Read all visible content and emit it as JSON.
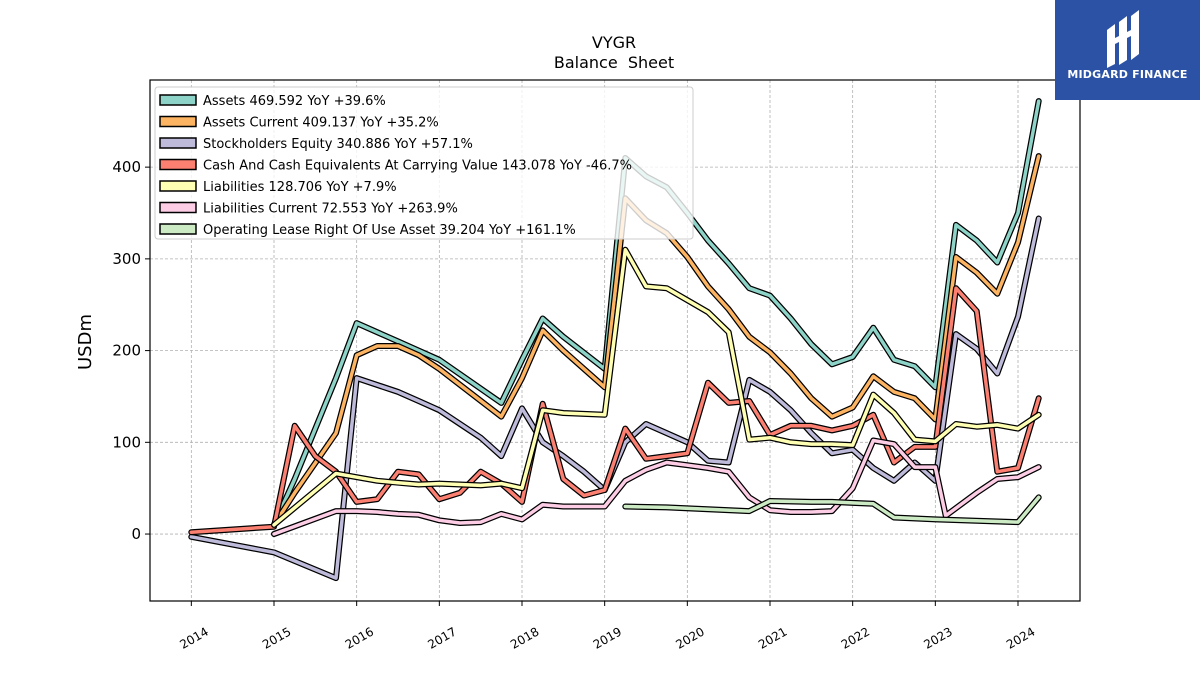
{
  "chart_data": {
    "type": "line",
    "title": "VYGR",
    "subtitle": "Balance  Sheet",
    "xlabel": "",
    "ylabel": "USDm",
    "x_ticks": [
      "2014",
      "2015",
      "2016",
      "2017",
      "2018",
      "2019",
      "2020",
      "2021",
      "2022",
      "2023",
      "2024"
    ],
    "y_ticks": [
      "0",
      "100",
      "200",
      "300",
      "400"
    ],
    "xlim": [
      2013.5,
      2024.75
    ],
    "ylim": [
      -73,
      495
    ],
    "grid": true,
    "legend_position": "top-left",
    "series": [
      {
        "name": "Assets",
        "legend": "Assets  469.592 YoY +39.6%",
        "color": "#8dd3c7",
        "points": [
          [
            2015.0,
            10
          ],
          [
            2015.25,
            60
          ],
          [
            2015.75,
            170
          ],
          [
            2016.0,
            230
          ],
          [
            2016.5,
            210
          ],
          [
            2016.75,
            200
          ],
          [
            2017.0,
            190
          ],
          [
            2017.75,
            143
          ],
          [
            2018.0,
            190
          ],
          [
            2018.25,
            235
          ],
          [
            2018.5,
            215
          ],
          [
            2019.0,
            180
          ],
          [
            2019.25,
            410
          ],
          [
            2019.5,
            390
          ],
          [
            2019.75,
            378
          ],
          [
            2020.0,
            350
          ],
          [
            2020.25,
            320
          ],
          [
            2020.5,
            295
          ],
          [
            2020.75,
            268
          ],
          [
            2021.0,
            260
          ],
          [
            2021.25,
            235
          ],
          [
            2021.5,
            207
          ],
          [
            2021.75,
            185
          ],
          [
            2022.0,
            193
          ],
          [
            2022.25,
            225
          ],
          [
            2022.5,
            190
          ],
          [
            2022.75,
            183
          ],
          [
            2023.0,
            160
          ],
          [
            2023.25,
            337
          ],
          [
            2023.5,
            320
          ],
          [
            2023.75,
            296
          ],
          [
            2024.0,
            350
          ],
          [
            2024.25,
            472
          ]
        ]
      },
      {
        "name": "Assets Current",
        "legend": "Assets Current  409.137 YoY +35.2%",
        "color": "#fdb462",
        "points": [
          [
            2015.0,
            10
          ],
          [
            2015.25,
            45
          ],
          [
            2015.75,
            110
          ],
          [
            2016.0,
            195
          ],
          [
            2016.25,
            205
          ],
          [
            2016.5,
            205
          ],
          [
            2016.75,
            195
          ],
          [
            2017.0,
            180
          ],
          [
            2017.75,
            128
          ],
          [
            2018.0,
            170
          ],
          [
            2018.25,
            222
          ],
          [
            2018.5,
            200
          ],
          [
            2019.0,
            160
          ],
          [
            2019.25,
            366
          ],
          [
            2019.5,
            342
          ],
          [
            2019.75,
            328
          ],
          [
            2020.0,
            302
          ],
          [
            2020.25,
            270
          ],
          [
            2020.5,
            245
          ],
          [
            2020.75,
            215
          ],
          [
            2021.0,
            198
          ],
          [
            2021.25,
            175
          ],
          [
            2021.5,
            148
          ],
          [
            2021.75,
            128
          ],
          [
            2022.0,
            138
          ],
          [
            2022.25,
            172
          ],
          [
            2022.5,
            155
          ],
          [
            2022.75,
            148
          ],
          [
            2023.0,
            125
          ],
          [
            2023.25,
            302
          ],
          [
            2023.5,
            285
          ],
          [
            2023.75,
            262
          ],
          [
            2024.0,
            318
          ],
          [
            2024.25,
            412
          ]
        ]
      },
      {
        "name": "Stockholders Equity",
        "legend": "Stockholders Equity  340.886 YoY +57.1%",
        "color": "#bebada",
        "points": [
          [
            2014.0,
            -3
          ],
          [
            2015.0,
            -20
          ],
          [
            2015.75,
            -48
          ],
          [
            2016.0,
            170
          ],
          [
            2016.5,
            155
          ],
          [
            2016.75,
            145
          ],
          [
            2017.0,
            135
          ],
          [
            2017.5,
            105
          ],
          [
            2017.75,
            85
          ],
          [
            2018.0,
            137
          ],
          [
            2018.25,
            100
          ],
          [
            2018.5,
            85
          ],
          [
            2018.75,
            68
          ],
          [
            2019.0,
            48
          ],
          [
            2019.25,
            100
          ],
          [
            2019.5,
            120
          ],
          [
            2019.75,
            110
          ],
          [
            2020.0,
            100
          ],
          [
            2020.25,
            80
          ],
          [
            2020.5,
            78
          ],
          [
            2020.75,
            168
          ],
          [
            2021.0,
            155
          ],
          [
            2021.25,
            135
          ],
          [
            2021.5,
            110
          ],
          [
            2021.75,
            88
          ],
          [
            2022.0,
            92
          ],
          [
            2022.25,
            72
          ],
          [
            2022.5,
            58
          ],
          [
            2022.75,
            78
          ],
          [
            2023.0,
            58
          ],
          [
            2023.25,
            218
          ],
          [
            2023.5,
            202
          ],
          [
            2023.75,
            175
          ],
          [
            2024.0,
            237
          ],
          [
            2024.25,
            344
          ]
        ]
      },
      {
        "name": "Cash And Cash Equivalents At Carrying Value",
        "legend": "Cash And Cash Equivalents At Carrying Value  143.078 YoY -46.7%",
        "color": "#fb8072",
        "points": [
          [
            2014.0,
            2
          ],
          [
            2015.0,
            8
          ],
          [
            2015.25,
            118
          ],
          [
            2015.5,
            85
          ],
          [
            2015.75,
            68
          ],
          [
            2016.0,
            35
          ],
          [
            2016.25,
            38
          ],
          [
            2016.5,
            68
          ],
          [
            2016.75,
            65
          ],
          [
            2017.0,
            38
          ],
          [
            2017.25,
            45
          ],
          [
            2017.5,
            68
          ],
          [
            2017.75,
            55
          ],
          [
            2018.0,
            35
          ],
          [
            2018.25,
            142
          ],
          [
            2018.5,
            60
          ],
          [
            2018.75,
            42
          ],
          [
            2019.0,
            48
          ],
          [
            2019.25,
            115
          ],
          [
            2019.5,
            82
          ],
          [
            2019.75,
            85
          ],
          [
            2020.0,
            88
          ],
          [
            2020.25,
            165
          ],
          [
            2020.5,
            143
          ],
          [
            2020.75,
            145
          ],
          [
            2021.0,
            108
          ],
          [
            2021.25,
            118
          ],
          [
            2021.5,
            118
          ],
          [
            2021.75,
            113
          ],
          [
            2022.0,
            118
          ],
          [
            2022.25,
            130
          ],
          [
            2022.5,
            78
          ],
          [
            2022.75,
            95
          ],
          [
            2023.0,
            95
          ],
          [
            2023.25,
            268
          ],
          [
            2023.5,
            243
          ],
          [
            2023.75,
            68
          ],
          [
            2024.0,
            72
          ],
          [
            2024.25,
            148
          ]
        ]
      },
      {
        "name": "Liabilities",
        "legend": "Liabilities  128.706 YoY +7.9%",
        "color": "#ffffb3",
        "points": [
          [
            2015.0,
            10
          ],
          [
            2015.75,
            66
          ],
          [
            2016.0,
            62
          ],
          [
            2016.25,
            58
          ],
          [
            2016.5,
            56
          ],
          [
            2016.75,
            54
          ],
          [
            2017.0,
            55
          ],
          [
            2017.5,
            53
          ],
          [
            2017.75,
            55
          ],
          [
            2018.0,
            50
          ],
          [
            2018.25,
            135
          ],
          [
            2018.5,
            132
          ],
          [
            2019.0,
            130
          ],
          [
            2019.25,
            310
          ],
          [
            2019.5,
            270
          ],
          [
            2019.75,
            268
          ],
          [
            2020.0,
            255
          ],
          [
            2020.25,
            242
          ],
          [
            2020.5,
            220
          ],
          [
            2020.75,
            103
          ],
          [
            2021.0,
            105
          ],
          [
            2021.25,
            100
          ],
          [
            2021.5,
            98
          ],
          [
            2021.75,
            98
          ],
          [
            2022.0,
            97
          ],
          [
            2022.25,
            152
          ],
          [
            2022.5,
            132
          ],
          [
            2022.75,
            103
          ],
          [
            2023.0,
            101
          ],
          [
            2023.25,
            120
          ],
          [
            2023.5,
            117
          ],
          [
            2023.75,
            119
          ],
          [
            2024.0,
            115
          ],
          [
            2024.25,
            130
          ]
        ]
      },
      {
        "name": "Liabilities Current",
        "legend": "Liabilities Current  72.553 YoY +263.9%",
        "color": "#fccde5",
        "points": [
          [
            2015.0,
            0
          ],
          [
            2015.75,
            25
          ],
          [
            2016.0,
            25
          ],
          [
            2016.25,
            24
          ],
          [
            2016.5,
            22
          ],
          [
            2016.75,
            21
          ],
          [
            2017.0,
            15
          ],
          [
            2017.25,
            12
          ],
          [
            2017.5,
            13
          ],
          [
            2017.75,
            22
          ],
          [
            2018.0,
            16
          ],
          [
            2018.25,
            32
          ],
          [
            2018.5,
            30
          ],
          [
            2019.0,
            30
          ],
          [
            2019.25,
            58
          ],
          [
            2019.5,
            70
          ],
          [
            2019.75,
            78
          ],
          [
            2020.0,
            75
          ],
          [
            2020.25,
            72
          ],
          [
            2020.5,
            68
          ],
          [
            2020.75,
            40
          ],
          [
            2021.0,
            26
          ],
          [
            2021.25,
            24
          ],
          [
            2021.5,
            24
          ],
          [
            2021.75,
            25
          ],
          [
            2022.0,
            50
          ],
          [
            2022.25,
            102
          ],
          [
            2022.5,
            98
          ],
          [
            2022.75,
            73
          ],
          [
            2023.0,
            73
          ],
          [
            2023.125,
            20
          ],
          [
            2023.5,
            45
          ],
          [
            2023.75,
            60
          ],
          [
            2024.0,
            62
          ],
          [
            2024.25,
            73
          ]
        ]
      },
      {
        "name": "Operating Lease Right Of Use Asset",
        "legend": "Operating Lease Right Of Use Asset  39.204 YoY +161.1%",
        "color": "#ccebc5",
        "points": [
          [
            2019.25,
            30
          ],
          [
            2019.75,
            29
          ],
          [
            2020.25,
            27
          ],
          [
            2020.75,
            25
          ],
          [
            2021.0,
            36
          ],
          [
            2021.5,
            35
          ],
          [
            2021.75,
            35
          ],
          [
            2022.0,
            34
          ],
          [
            2022.25,
            33
          ],
          [
            2022.5,
            18
          ],
          [
            2023.0,
            16
          ],
          [
            2024.0,
            13
          ],
          [
            2024.25,
            40
          ]
        ]
      }
    ]
  },
  "logo": {
    "text": "MIDGARD FINANCE",
    "color": "#2b52a4"
  }
}
